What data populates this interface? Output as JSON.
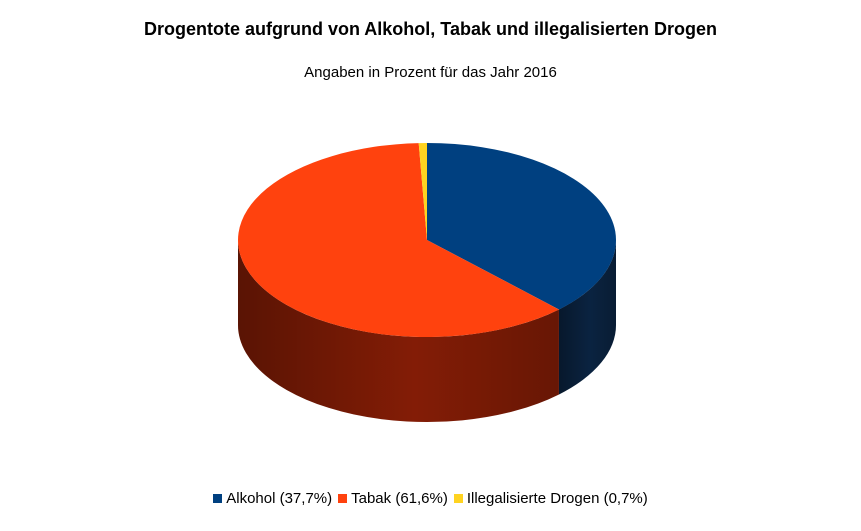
{
  "chart_data": {
    "type": "pie",
    "title": "Drogentote aufgrund von Alkohol, Tabak und illegalisierten Drogen",
    "subtitle": "Angaben in Prozent für das Jahr 2016",
    "unit": "%",
    "style": "3d",
    "legend_position": "bottom",
    "slices": [
      {
        "label": "Alkohol",
        "value": 37.7,
        "legend_text": "Alkohol (37,7%)",
        "color": "#004080",
        "side_color": "#0b2544"
      },
      {
        "label": "Tabak",
        "value": 61.6,
        "legend_text": "Tabak (61,6%)",
        "color": "#ff420e",
        "side_color": "#8a1e06"
      },
      {
        "label": "Illegalisierte Drogen",
        "value": 0.7,
        "legend_text": "Illegalisierte Drogen (0,7%)",
        "color": "#ffd320",
        "side_color": "#8a7210"
      }
    ]
  }
}
